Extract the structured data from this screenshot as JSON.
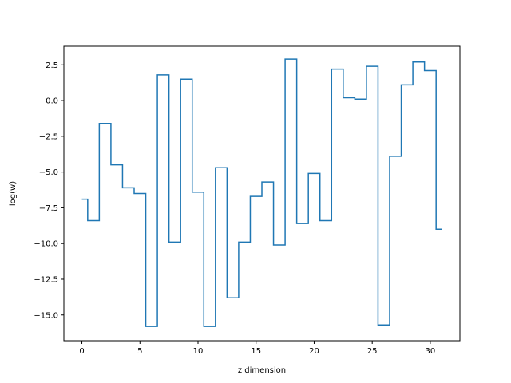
{
  "chart_data": {
    "type": "line",
    "drawstyle": "steps-mid",
    "title": "",
    "xlabel": "z dimension",
    "ylabel": "log(w)",
    "xlim": [
      -1.55,
      32.55
    ],
    "ylim": [
      -16.8,
      3.8
    ],
    "xticks": [
      0,
      5,
      10,
      15,
      20,
      25,
      30
    ],
    "xtick_labels": [
      "0",
      "5",
      "10",
      "15",
      "20",
      "25",
      "30"
    ],
    "yticks": [
      2.5,
      0.0,
      -2.5,
      -5.0,
      -7.5,
      -10.0,
      -12.5,
      -15.0
    ],
    "ytick_labels": [
      "2.5",
      "0.0",
      "−2.5",
      "−5.0",
      "−7.5",
      "−10.0",
      "−12.5",
      "−15.0"
    ],
    "grid": false,
    "legend": null,
    "series": [
      {
        "color": "#1f77b4",
        "x": [
          0,
          1,
          2,
          3,
          4,
          5,
          6,
          7,
          8,
          9,
          10,
          11,
          12,
          13,
          14,
          15,
          16,
          17,
          18,
          19,
          20,
          21,
          22,
          23,
          24,
          25,
          26,
          27,
          28,
          29,
          30,
          31
        ],
        "y": [
          -6.9,
          -8.4,
          -1.6,
          -4.5,
          -6.1,
          -6.5,
          -15.8,
          1.8,
          -9.9,
          1.5,
          -6.4,
          -15.8,
          -4.7,
          -13.8,
          -9.9,
          -6.7,
          -5.7,
          -10.1,
          2.9,
          -8.6,
          -5.1,
          -8.4,
          2.2,
          0.2,
          0.1,
          2.4,
          -15.7,
          -3.9,
          1.1,
          2.7,
          2.1,
          -9.0
        ]
      }
    ]
  }
}
